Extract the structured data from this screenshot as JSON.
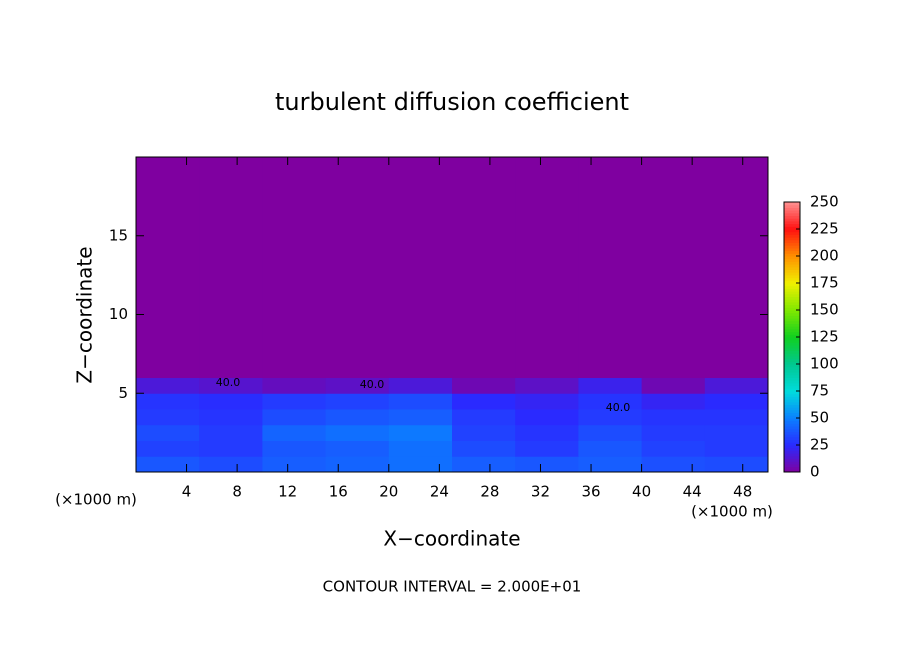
{
  "chart_data": {
    "type": "heatmap",
    "title": "turbulent diffusion coefficient",
    "xlabel": "X−coordinate",
    "ylabel": "Z−coordinate",
    "xunit": "(×1000 m)",
    "yunit": "(×1000 m)",
    "footnote": "CONTOUR INTERVAL = 2.000E+01",
    "annotations": [
      "40.0",
      "40.0",
      "40.0"
    ],
    "xlim": [
      0,
      50
    ],
    "ylim": [
      0,
      20
    ],
    "xticks": [
      4,
      8,
      12,
      16,
      20,
      24,
      28,
      32,
      36,
      40,
      44,
      48
    ],
    "yticks": [
      5,
      10,
      15
    ],
    "x": [
      0,
      5,
      10,
      15,
      20,
      25,
      30,
      35,
      40,
      45,
      50
    ],
    "y": [
      0,
      1,
      2,
      3,
      4,
      5,
      6,
      20
    ],
    "values": [
      [
        38,
        35,
        40,
        42,
        45,
        40,
        38,
        40,
        36,
        35
      ],
      [
        32,
        30,
        38,
        40,
        45,
        35,
        30,
        38,
        32,
        30
      ],
      [
        35,
        30,
        42,
        45,
        48,
        32,
        28,
        35,
        30,
        30
      ],
      [
        30,
        28,
        35,
        38,
        40,
        30,
        25,
        30,
        28,
        28
      ],
      [
        28,
        26,
        30,
        32,
        35,
        25,
        22,
        28,
        22,
        25
      ],
      [
        15,
        12,
        8,
        10,
        15,
        5,
        10,
        20,
        5,
        15
      ],
      [
        0,
        0,
        0,
        0,
        0,
        0,
        0,
        0,
        0,
        0
      ]
    ],
    "colorbar": {
      "ticks": [
        0,
        25,
        50,
        75,
        100,
        125,
        150,
        175,
        200,
        225,
        250
      ],
      "colors": [
        "#7f00a0",
        "#2a2aff",
        "#0a80ff",
        "#00dcdc",
        "#00c890",
        "#10d020",
        "#80e800",
        "#f0f000",
        "#ff9000",
        "#ff1010",
        "#ff9090"
      ]
    }
  }
}
